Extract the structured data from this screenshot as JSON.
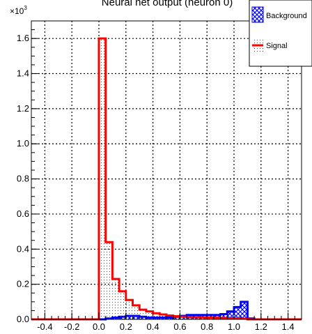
{
  "chart_data": {
    "type": "histogram",
    "title": "Neural net output (neuron 0)",
    "xlabel": "",
    "ylabel": "",
    "y_multiplier_label": "×10",
    "y_multiplier_exponent": "3",
    "xlim": [
      -0.5,
      1.5
    ],
    "ylim": [
      0,
      1.7
    ],
    "grid": true,
    "grid_style": "dotted",
    "legend_position": "top-right",
    "x_ticks": [
      -0.4,
      -0.2,
      0.0,
      0.2,
      0.4,
      0.6,
      0.8,
      1.0,
      1.2,
      1.4
    ],
    "x_tick_labels": [
      "-0.4",
      "-0.2",
      "0.0",
      "0.2",
      "0.4",
      "0.6",
      "0.8",
      "1.0",
      "1.2",
      "1.4"
    ],
    "y_ticks": [
      0,
      0.2,
      0.4,
      0.6,
      0.8,
      1.0,
      1.2,
      1.4,
      1.6
    ],
    "y_tick_labels": [
      "0.0",
      "0.2",
      "0.4",
      "0.6",
      "0.8",
      "1.0",
      "1.2",
      "1.4",
      "1.6"
    ],
    "bin_edges": [
      -0.5,
      -0.45,
      -0.4,
      -0.35,
      -0.3,
      -0.25,
      -0.2,
      -0.15,
      -0.1,
      -0.05,
      0.0,
      0.05,
      0.1,
      0.15,
      0.2,
      0.25,
      0.3,
      0.35,
      0.4,
      0.45,
      0.5,
      0.55,
      0.6,
      0.65,
      0.7,
      0.75,
      0.8,
      0.85,
      0.9,
      0.95,
      1.0,
      1.05,
      1.1,
      1.15,
      1.2,
      1.25,
      1.3,
      1.35,
      1.4,
      1.45,
      1.5
    ],
    "series": [
      {
        "name": "Background",
        "color": "#0000ff",
        "fill": "blue crosshatch",
        "values": [
          0,
          0,
          0,
          0,
          0,
          0,
          0,
          0,
          0,
          0,
          0,
          0.005,
          0.01,
          0.015,
          0.02,
          0.02,
          0.015,
          0.01,
          0.01,
          0.01,
          0.01,
          0.015,
          0.02,
          0.025,
          0.025,
          0.025,
          0.025,
          0.025,
          0.03,
          0.045,
          0.07,
          0.1,
          0.005,
          0,
          0,
          0,
          0,
          0,
          0,
          0
        ]
      },
      {
        "name": "Signal",
        "color": "#ff0000",
        "fill": "red dotted",
        "values": [
          0,
          0,
          0,
          0,
          0,
          0,
          0,
          0,
          0,
          0,
          1.6,
          0.44,
          0.23,
          0.16,
          0.11,
          0.08,
          0.055,
          0.045,
          0.035,
          0.028,
          0.022,
          0.018,
          0.015,
          0.013,
          0.012,
          0.011,
          0.01,
          0.009,
          0.008,
          0.006,
          0.005,
          0.004,
          0,
          0,
          0,
          0,
          0,
          0,
          0,
          0
        ]
      }
    ]
  }
}
